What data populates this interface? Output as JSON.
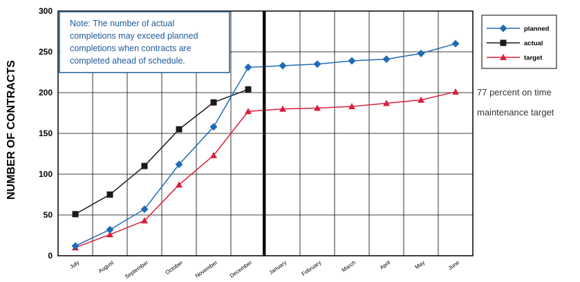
{
  "chart_data": {
    "type": "line",
    "title": "",
    "xlabel": "",
    "ylabel": "NUMBER OF CONTRACTS",
    "categories": [
      "July",
      "August",
      "September",
      "October",
      "November",
      "December",
      "January",
      "February",
      "March",
      "April",
      "May",
      "June"
    ],
    "yticks": [
      0,
      50,
      100,
      150,
      200,
      250,
      300
    ],
    "ylim": [
      0,
      300
    ],
    "grid": true,
    "legend_position": "right",
    "series": [
      {
        "name": "planned",
        "color": "#1f6bb5",
        "marker": "diamond",
        "values": [
          12,
          32,
          57,
          112,
          158,
          231,
          233,
          235,
          239,
          241,
          248,
          260
        ]
      },
      {
        "name": "actual",
        "color": "#1a1a1a",
        "marker": "square",
        "values": [
          51,
          75,
          110,
          155,
          188,
          204,
          null,
          null,
          null,
          null,
          null,
          null
        ]
      },
      {
        "name": "target",
        "color": "#d81e3c",
        "marker": "triangle",
        "values": [
          10,
          26,
          43,
          87,
          123,
          177,
          180,
          181,
          183,
          187,
          191,
          201
        ]
      }
    ],
    "note": {
      "lines": [
        "Note: The number of actual",
        "completions may exceed planned",
        "completions when contracts are",
        "completed ahead of schedule."
      ]
    },
    "annotation": {
      "lines": [
        "77 percent on time",
        "maintenance target"
      ]
    }
  }
}
